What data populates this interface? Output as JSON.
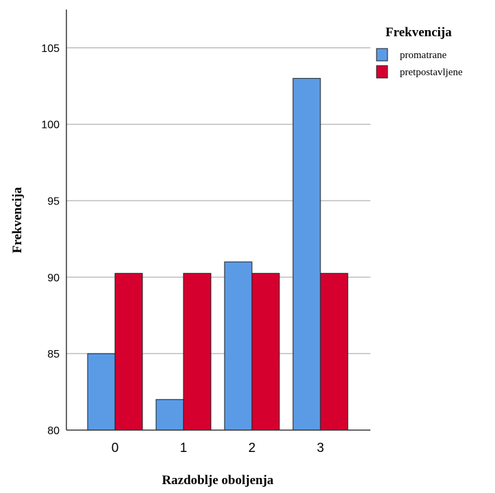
{
  "chart_data": {
    "type": "bar",
    "categories": [
      "0",
      "1",
      "2",
      "3"
    ],
    "series": [
      {
        "name": "promatrane",
        "values": [
          85,
          82,
          91,
          103
        ],
        "color": "#5b9be6"
      },
      {
        "name": "pretpostavljene",
        "values": [
          90.25,
          90.25,
          90.25,
          90.25
        ],
        "color": "#d6002f"
      }
    ],
    "xlabel": "Razdoblje oboljenja",
    "ylabel": "Frekvencija",
    "ylim": [
      80,
      107.5
    ],
    "yticks": [
      80,
      85,
      90,
      95,
      100,
      105
    ],
    "grid": true,
    "legend": {
      "title": "Frekvencija",
      "position": "top-right"
    }
  }
}
